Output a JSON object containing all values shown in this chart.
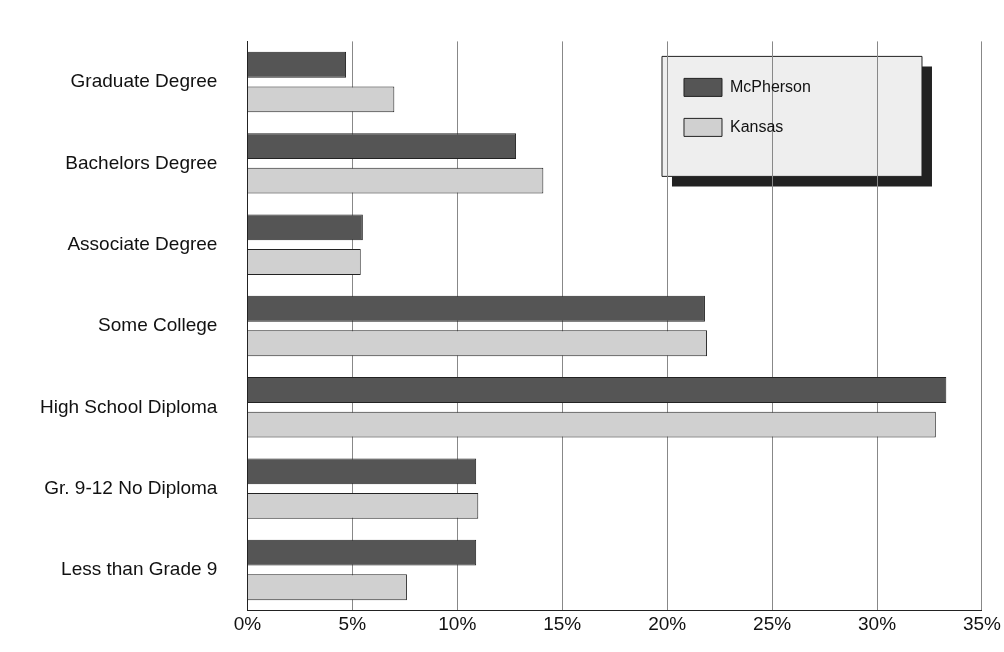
{
  "chart_data": {
    "type": "bar",
    "orientation": "horizontal",
    "categories": [
      "Graduate Degree",
      "Bachelors Degree",
      "Associate Degree",
      "Some College",
      "High School Diploma",
      "Gr. 9-12 No Diploma",
      "Less than Grade 9"
    ],
    "series": [
      {
        "name": "McPherson",
        "color": "#555555",
        "values": [
          4.7,
          12.8,
          5.5,
          21.8,
          33.3,
          10.9,
          10.9
        ]
      },
      {
        "name": "Kansas",
        "color": "#d0d0d0",
        "values": [
          7.0,
          14.1,
          5.4,
          21.9,
          32.8,
          11.0,
          7.6
        ]
      }
    ],
    "xlim": [
      0,
      35
    ],
    "xticks": [
      {
        "value": 0,
        "label": "0%"
      },
      {
        "value": 5,
        "label": "5%"
      },
      {
        "value": 10,
        "label": "10%"
      },
      {
        "value": 15,
        "label": "15%"
      },
      {
        "value": 20,
        "label": "20%"
      },
      {
        "value": 25,
        "label": "25%"
      },
      {
        "value": 30,
        "label": "30%"
      },
      {
        "value": 35,
        "label": "35%"
      }
    ],
    "grid": "x",
    "legend": "top right"
  }
}
